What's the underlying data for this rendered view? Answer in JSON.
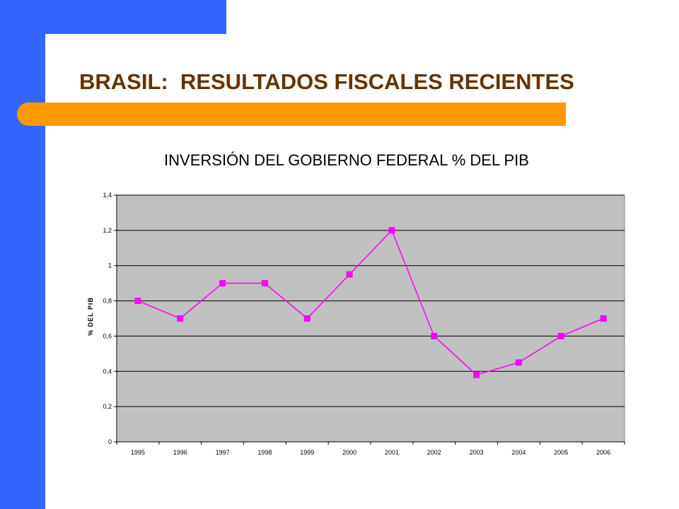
{
  "slide": {
    "title": "BRASIL:  RESULTADOS FISCALES RECIENTES"
  },
  "colors": {
    "accent_blue": "#3366ff",
    "bar_orange": "#ff9900",
    "title_brown": "#663300",
    "plot_bg": "#c0c0c0",
    "series_magenta": "#ff00ff"
  },
  "chart_data": {
    "type": "line",
    "title": "INVERSIÓN DEL GOBIERNO FEDERAL % DEL PIB",
    "xlabel": "",
    "ylabel": "% DEL PIB",
    "categories": [
      "1995",
      "1996",
      "1997",
      "1998",
      "1999",
      "2000",
      "2001",
      "2002",
      "2003",
      "2004",
      "2005",
      "2006"
    ],
    "series": [
      {
        "values": [
          0.8,
          0.7,
          0.9,
          0.9,
          0.7,
          0.95,
          1.2,
          0.6,
          0.38,
          0.45,
          0.6,
          0.7
        ]
      }
    ],
    "ylim": [
      0,
      1.4
    ],
    "yticks": [
      "0",
      "0,2",
      "0,4",
      "0,6",
      "0,8",
      "1",
      "1,2",
      "1,4"
    ],
    "grid": true,
    "legend": "none"
  }
}
